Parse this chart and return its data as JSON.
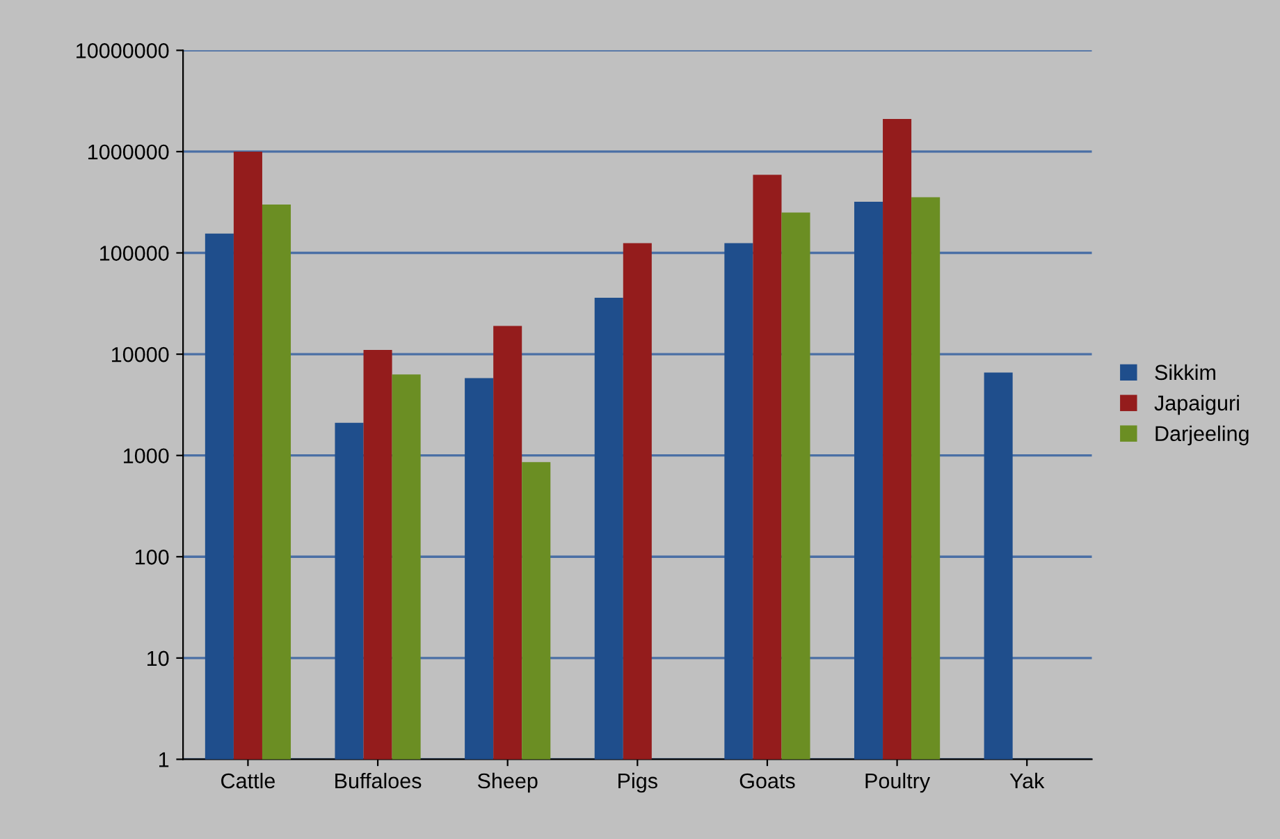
{
  "chart_data": {
    "type": "bar",
    "log": "y",
    "categories": [
      "Cattle",
      "Buffaloes",
      "Sheep",
      "Pigs",
      "Goats",
      "Poultry",
      "Yak"
    ],
    "series": [
      {
        "name": "Sikkim",
        "color": "#1f4e8c",
        "values": [
          155000,
          2100,
          5800,
          36000,
          125000,
          320000,
          6600
        ]
      },
      {
        "name": "Japaiguri",
        "color": "#941c1c",
        "values": [
          1000000,
          11000,
          19000,
          125000,
          590000,
          2100000,
          null
        ]
      },
      {
        "name": "Darjeeling",
        "color": "#6b8e23",
        "values": [
          300000,
          6300,
          860,
          null,
          250000,
          355000,
          null
        ]
      }
    ],
    "ylim": [
      1,
      10000000
    ],
    "yticks": [
      1,
      10,
      100,
      1000,
      10000,
      100000,
      1000000,
      10000000
    ],
    "grid": "y",
    "legend": "right"
  }
}
